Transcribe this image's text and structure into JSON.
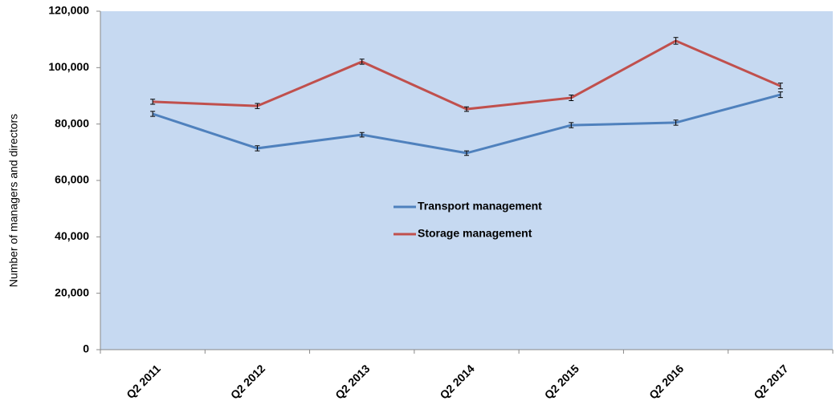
{
  "chart_data": {
    "type": "line",
    "y_label": "Number of managers and directors",
    "categories": [
      "Q2 2011",
      "Q2 2012",
      "Q2 2013",
      "Q2 2014",
      "Q2 2015",
      "Q2 2016",
      "Q2 2017"
    ],
    "series": [
      {
        "name": "Transport management",
        "color": "#4f81bd",
        "values": [
          83600,
          71400,
          76200,
          69700,
          79600,
          80500,
          90400
        ],
        "errors": [
          900,
          900,
          800,
          800,
          900,
          900,
          1000
        ]
      },
      {
        "name": "Storage management",
        "color": "#c0504d",
        "values": [
          87900,
          86400,
          102100,
          85300,
          89300,
          109500,
          93500
        ],
        "errors": [
          900,
          900,
          900,
          800,
          1000,
          1200,
          1000
        ]
      }
    ],
    "ylim": [
      0,
      120000
    ],
    "yticks": [
      0,
      {
        "value": 20000,
        "label": "20,000"
      },
      {
        "value": 40000,
        "label": "40,000"
      },
      {
        "value": 60000,
        "label": "60,000"
      },
      {
        "value": 80000,
        "label": "80,000"
      },
      {
        "value": 100000,
        "label": "100,000"
      },
      {
        "value": 120000,
        "label": "120,000"
      }
    ],
    "plot_background": "#c6d9f1",
    "legend": "center"
  }
}
